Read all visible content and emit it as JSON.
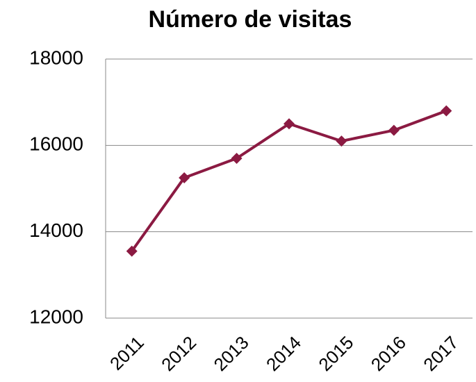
{
  "chart_data": {
    "type": "line",
    "title": "Número de visitas",
    "categories": [
      "2011",
      "2012",
      "2013",
      "2014",
      "2015",
      "2016",
      "2017"
    ],
    "series": [
      {
        "name": "Número de visitas",
        "color": "#8b1a42",
        "values": [
          13550,
          15250,
          15700,
          16500,
          16100,
          16350,
          16800
        ]
      }
    ],
    "ylim": [
      12000,
      18000
    ],
    "yticks": [
      12000,
      14000,
      16000,
      18000
    ],
    "grid": true
  }
}
